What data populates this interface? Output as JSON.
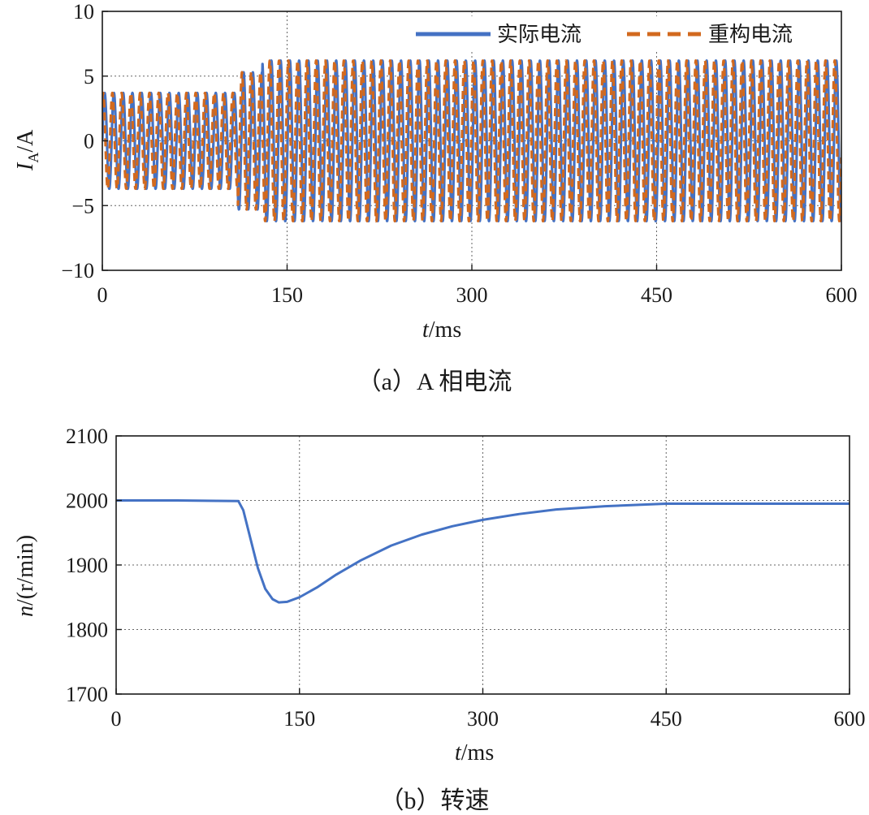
{
  "chart_data": [
    {
      "type": "line",
      "panel": "a",
      "caption": "（a）A 相电流",
      "title": "",
      "xlabel_italic": "t",
      "xlabel_unit": "/ms",
      "ylabel_main": "I",
      "ylabel_sub": "A",
      "ylabel_unit": "/A",
      "xlim": [
        0,
        600
      ],
      "ylim": [
        -10,
        10
      ],
      "xticks": [
        "0",
        "150",
        "300",
        "450",
        "600"
      ],
      "yticks": [
        "10",
        "5",
        "0",
        "−5",
        "−10"
      ],
      "xtick_values": [
        0,
        150,
        300,
        450,
        600
      ],
      "ytick_values": [
        10,
        5,
        0,
        -5,
        -10
      ],
      "grid": true,
      "legend_position": "top-right",
      "series": [
        {
          "name": "实际电流",
          "style": "solid",
          "color": "#4472C4",
          "segments": [
            {
              "t_start": 0,
              "t_end": 110,
              "amplitude": 3.7
            },
            {
              "t_start": 110,
              "t_end": 130,
              "amplitude": 5.3
            },
            {
              "t_start": 130,
              "t_end": 600,
              "amplitude": 6.2
            }
          ],
          "frequency_hz": 133,
          "phase_deg": 0
        },
        {
          "name": "重构电流",
          "style": "dashed",
          "color": "#D2691E",
          "segments": [
            {
              "t_start": 0,
              "t_end": 110,
              "amplitude": 3.7
            },
            {
              "t_start": 110,
              "t_end": 130,
              "amplitude": 5.3
            },
            {
              "t_start": 130,
              "t_end": 600,
              "amplitude": 6.2
            }
          ],
          "frequency_hz": 133,
          "phase_deg": 60
        }
      ]
    },
    {
      "type": "line",
      "panel": "b",
      "caption": "（b）转速",
      "title": "",
      "xlabel_italic": "t",
      "xlabel_unit": "/ms",
      "ylabel_italic": "n",
      "ylabel_unit": "/(r/min)",
      "xlim": [
        0,
        600
      ],
      "ylim": [
        1700,
        2100
      ],
      "xticks": [
        "0",
        "150",
        "300",
        "450",
        "600"
      ],
      "yticks": [
        "2100",
        "2000",
        "1900",
        "1800",
        "1700"
      ],
      "xtick_values": [
        0,
        150,
        300,
        450,
        600
      ],
      "ytick_values": [
        2100,
        2000,
        1900,
        1800,
        1700
      ],
      "grid": true,
      "series": [
        {
          "name": "转速",
          "color": "#4472C4",
          "x": [
            0,
            50,
            100,
            104,
            110,
            116,
            122,
            128,
            133,
            140,
            150,
            165,
            180,
            200,
            225,
            250,
            275,
            300,
            330,
            360,
            400,
            450,
            500,
            550,
            600
          ],
          "y": [
            2000,
            2000,
            1999,
            1985,
            1940,
            1895,
            1863,
            1847,
            1842,
            1843,
            1850,
            1866,
            1885,
            1907,
            1930,
            1947,
            1960,
            1970,
            1979,
            1986,
            1991,
            1995,
            1995,
            1995,
            1995
          ]
        }
      ]
    }
  ]
}
